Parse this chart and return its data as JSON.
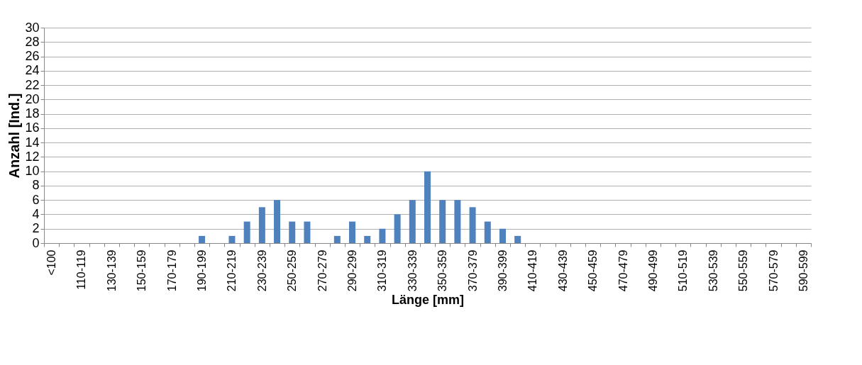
{
  "chart_data": {
    "type": "bar",
    "xlabel": "Länge [mm]",
    "ylabel": "Anzahl [Ind.]",
    "categories": [
      "<100",
      null,
      "110-119",
      null,
      "130-139",
      null,
      "150-159",
      null,
      "170-179",
      null,
      "190-199",
      null,
      "210-219",
      null,
      "230-239",
      null,
      "250-259",
      null,
      "270-279",
      null,
      "290-299",
      null,
      "310-319",
      null,
      "330-339",
      null,
      "350-359",
      null,
      "370-379",
      null,
      "390-399",
      null,
      "410-419",
      null,
      "430-439",
      null,
      "450-459",
      null,
      "470-479",
      null,
      "490-499",
      null,
      "510-519",
      null,
      "530-539",
      null,
      "550-559",
      null,
      "570-579",
      null,
      "590-599"
    ],
    "values": [
      0,
      0,
      0,
      0,
      0,
      0,
      0,
      0,
      0,
      0,
      1,
      0,
      1,
      3,
      5,
      6,
      3,
      3,
      0,
      1,
      3,
      1,
      2,
      4,
      6,
      10,
      6,
      6,
      5,
      3,
      2,
      1,
      0,
      0,
      0,
      0,
      0,
      0,
      0,
      0,
      0,
      0,
      0,
      0,
      0,
      0,
      0,
      0,
      0,
      0,
      0
    ],
    "color": "#4f81bd",
    "ylim": [
      0,
      30
    ],
    "yticks": [
      0,
      2,
      4,
      6,
      8,
      10,
      12,
      14,
      16,
      18,
      20,
      22,
      24,
      26,
      28,
      30
    ],
    "grid": "y"
  }
}
